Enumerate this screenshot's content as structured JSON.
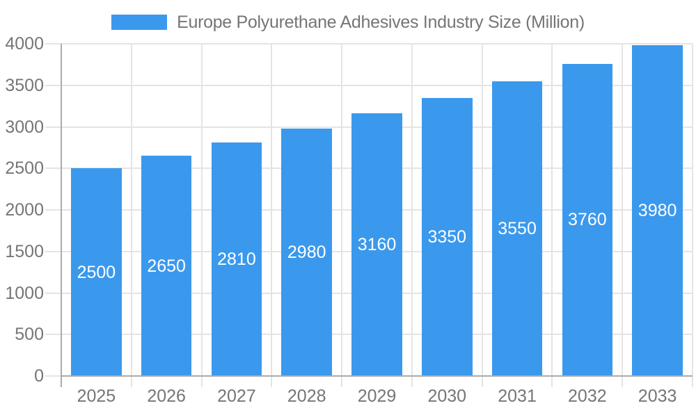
{
  "legend": {
    "series_label": "Europe Polyurethane Adhesives Industry Size (Million)"
  },
  "chart_data": {
    "type": "bar",
    "title": "Europe Polyurethane Adhesives Industry Size (Million)",
    "categories": [
      "2025",
      "2026",
      "2027",
      "2028",
      "2029",
      "2030",
      "2031",
      "2032",
      "2033"
    ],
    "values": [
      2500,
      2650,
      2810,
      2980,
      3160,
      3350,
      3550,
      3760,
      3980
    ],
    "bar_value_labels": [
      "2500",
      "2650",
      "2810",
      "2980",
      "3160",
      "3350",
      "3550",
      "3760",
      "3980"
    ],
    "xlabel": "",
    "ylabel": "",
    "ylim": [
      0,
      4000
    ],
    "ytick_interval": 500,
    "yticks": [
      0,
      500,
      1000,
      1500,
      2000,
      2500,
      3000,
      3500,
      4000
    ],
    "grid": true,
    "legend_position": "top",
    "colors": {
      "bar": "#3B99ED",
      "bar_label_text": "#FFFFFF",
      "axis_text": "#757575",
      "title_text": "#757575",
      "grid_line": "#E4E4E4",
      "axis_line": "#ABABAB",
      "background": "#FFFFFF"
    }
  }
}
